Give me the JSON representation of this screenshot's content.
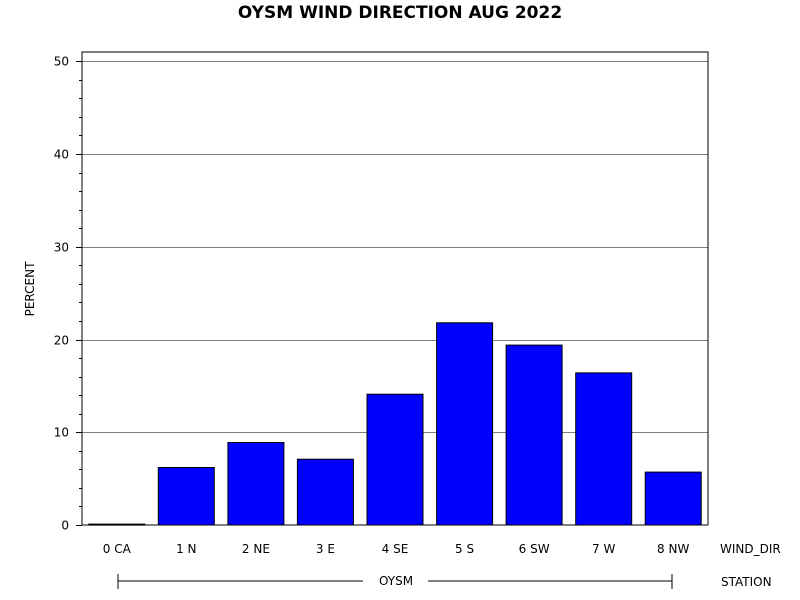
{
  "chart_data": {
    "type": "bar",
    "title": "OYSM WIND DIRECTION AUG 2022",
    "ylabel": "PERCENT",
    "xlabel": "WIND_DIR",
    "group_label": "STATION",
    "group_value": "OYSM",
    "categories": [
      "0 CA",
      "1 N",
      "2 NE",
      "3 E",
      "4 SE",
      "5 S",
      "6 SW",
      "7 W",
      "8 NW"
    ],
    "values": [
      0.1,
      6.2,
      8.9,
      7.1,
      14.1,
      21.8,
      19.4,
      16.4,
      5.7
    ],
    "ylim": [
      0,
      51
    ],
    "yticks": [
      0,
      10,
      20,
      30,
      40,
      50
    ],
    "grid": true,
    "bar_color": "#0000ff",
    "grid_color": "#808080"
  }
}
